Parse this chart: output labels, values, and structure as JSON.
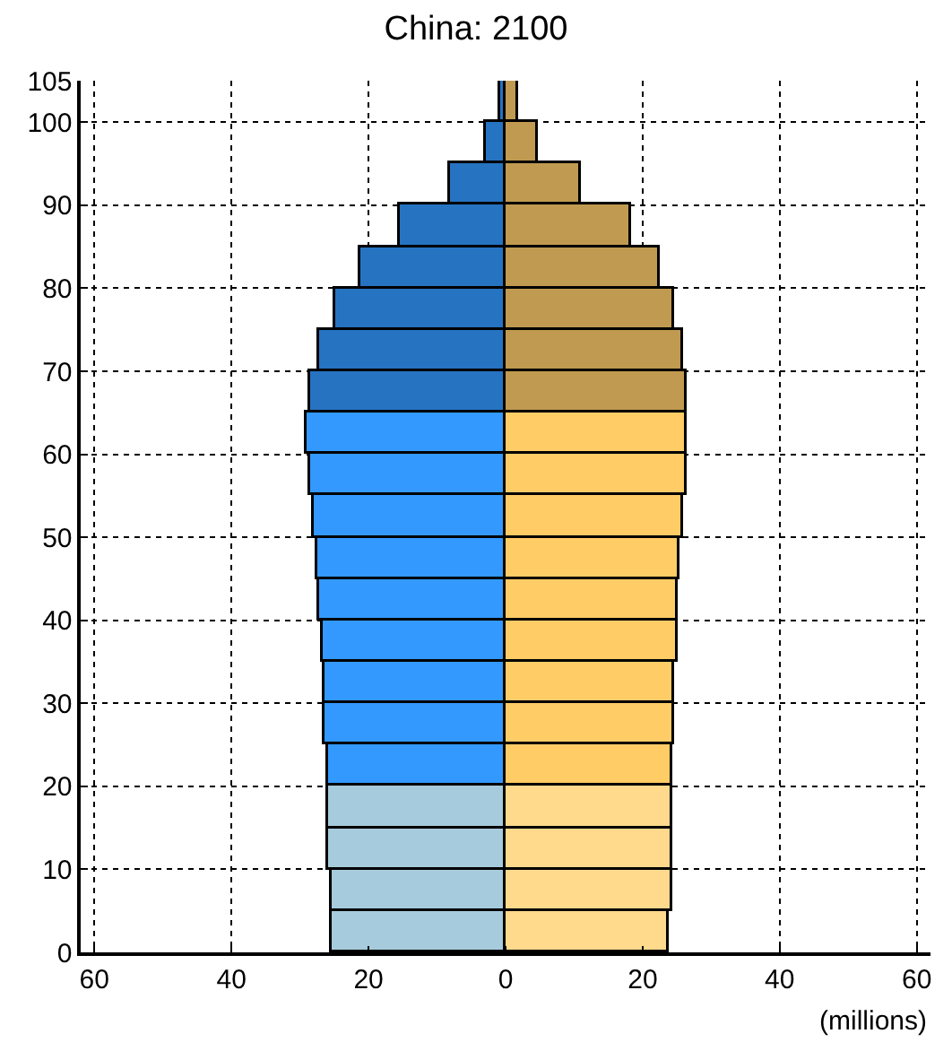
{
  "chart_data": {
    "type": "bar",
    "title": "China: 2100",
    "xlabel": "(millions)",
    "orientation": "horizontal",
    "x": [
      2.5,
      7.5,
      12.5,
      17.5,
      22.5,
      27.5,
      32.5,
      37.5,
      42.5,
      47.5,
      52.5,
      57.5,
      62.5,
      67.5,
      72.5,
      77.5,
      82.5,
      87.5,
      92.5,
      97.5,
      102.5
    ],
    "series": [
      {
        "values": [
          -25.5,
          -25.4,
          -25.8,
          -25.8,
          -26.0,
          -26.4,
          -26.4,
          -26.7,
          -27.2,
          -27.6,
          -28.1,
          -28.6,
          -29.0,
          -28.5,
          -27.2,
          -24.9,
          -21.1,
          -15.4,
          -8.0,
          -2.8,
          -0.7
        ],
        "colors": [
          "#a6cbdc",
          "#a6cbdc",
          "#a6cbdc",
          "#a6cbdc",
          "#3399ff",
          "#3399ff",
          "#3399ff",
          "#3399ff",
          "#3399ff",
          "#3399ff",
          "#3399ff",
          "#3399ff",
          "#3399ff",
          "#2673c2",
          "#2673c2",
          "#2673c2",
          "#2673c2",
          "#2673c2",
          "#2673c2",
          "#2673c2",
          "#2673c2"
        ]
      },
      {
        "values": [
          23.9,
          24.2,
          24.2,
          24.2,
          24.2,
          24.7,
          24.7,
          25.1,
          25.1,
          25.5,
          25.9,
          26.3,
          26.3,
          26.3,
          25.9,
          24.7,
          22.4,
          18.2,
          11.1,
          4.7,
          1.7
        ],
        "colors": [
          "#ffd98c",
          "#ffd98c",
          "#ffd98c",
          "#ffd98c",
          "#ffcc66",
          "#ffcc66",
          "#ffcc66",
          "#ffcc66",
          "#ffcc66",
          "#ffcc66",
          "#ffcc66",
          "#ffcc66",
          "#ffcc66",
          "#c09a50",
          "#c09a50",
          "#c09a50",
          "#c09a50",
          "#c09a50",
          "#c09a50",
          "#c09a50",
          "#c09a50"
        ]
      }
    ],
    "xlim": [
      -62,
      62
    ],
    "xticks": [
      {
        "value": -60,
        "label": "60"
      },
      {
        "value": -40,
        "label": "40"
      },
      {
        "value": -20,
        "label": "20"
      },
      0,
      20,
      40,
      60
    ],
    "ylim": [
      0,
      105
    ],
    "yticks": [
      0,
      10,
      20,
      30,
      40,
      50,
      60,
      70,
      80,
      90,
      100,
      105
    ],
    "grid": true,
    "stacked": true
  }
}
